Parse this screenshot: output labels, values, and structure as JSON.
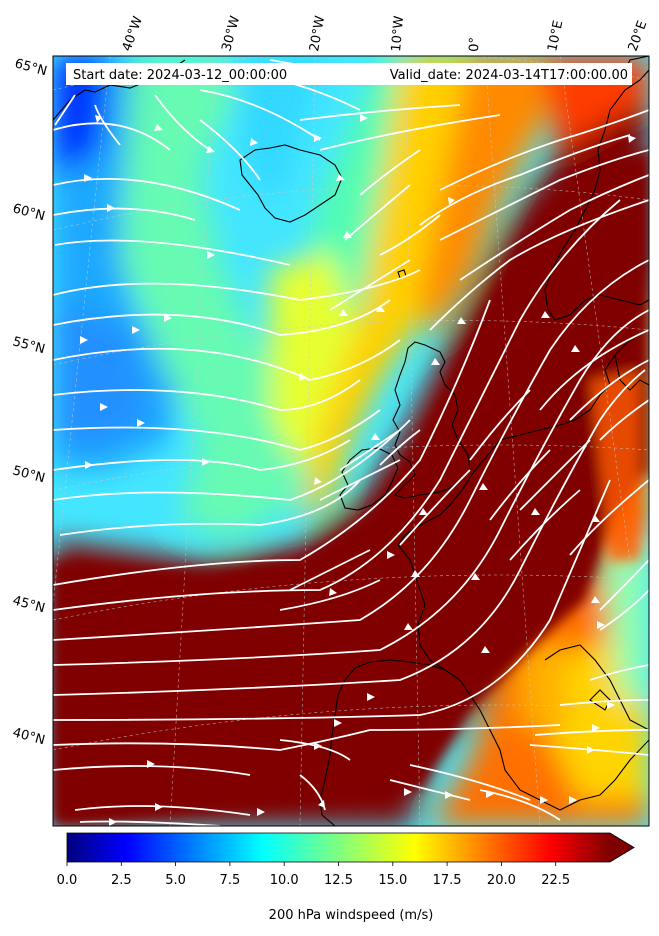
{
  "header": {
    "start_date": "Start date: 2024-03-12_00:00:00",
    "valid_date": "Valid_date: 2024-03-14T17:00:00.00"
  },
  "map": {
    "projection": "lambert-conformal",
    "lon_labels": [
      "40°W",
      "30°W",
      "20°W",
      "10°W",
      "0°",
      "10°E",
      "20°E"
    ],
    "lat_labels": [
      "65°N",
      "60°N",
      "55°N",
      "50°N",
      "45°N",
      "40°N"
    ],
    "field": "200 hPa windspeed",
    "streamline_color": "#ffffff",
    "coastline_color": "#000000"
  },
  "colorbar": {
    "label": "200 hPa windspeed (m/s)",
    "colormap": "jet",
    "vmin": 0,
    "vmax": 25,
    "extend": "max",
    "ticks": [
      "0.0",
      "2.5",
      "5.0",
      "7.5",
      "10.0",
      "12.5",
      "15.0",
      "17.5",
      "20.0",
      "22.5"
    ]
  }
}
